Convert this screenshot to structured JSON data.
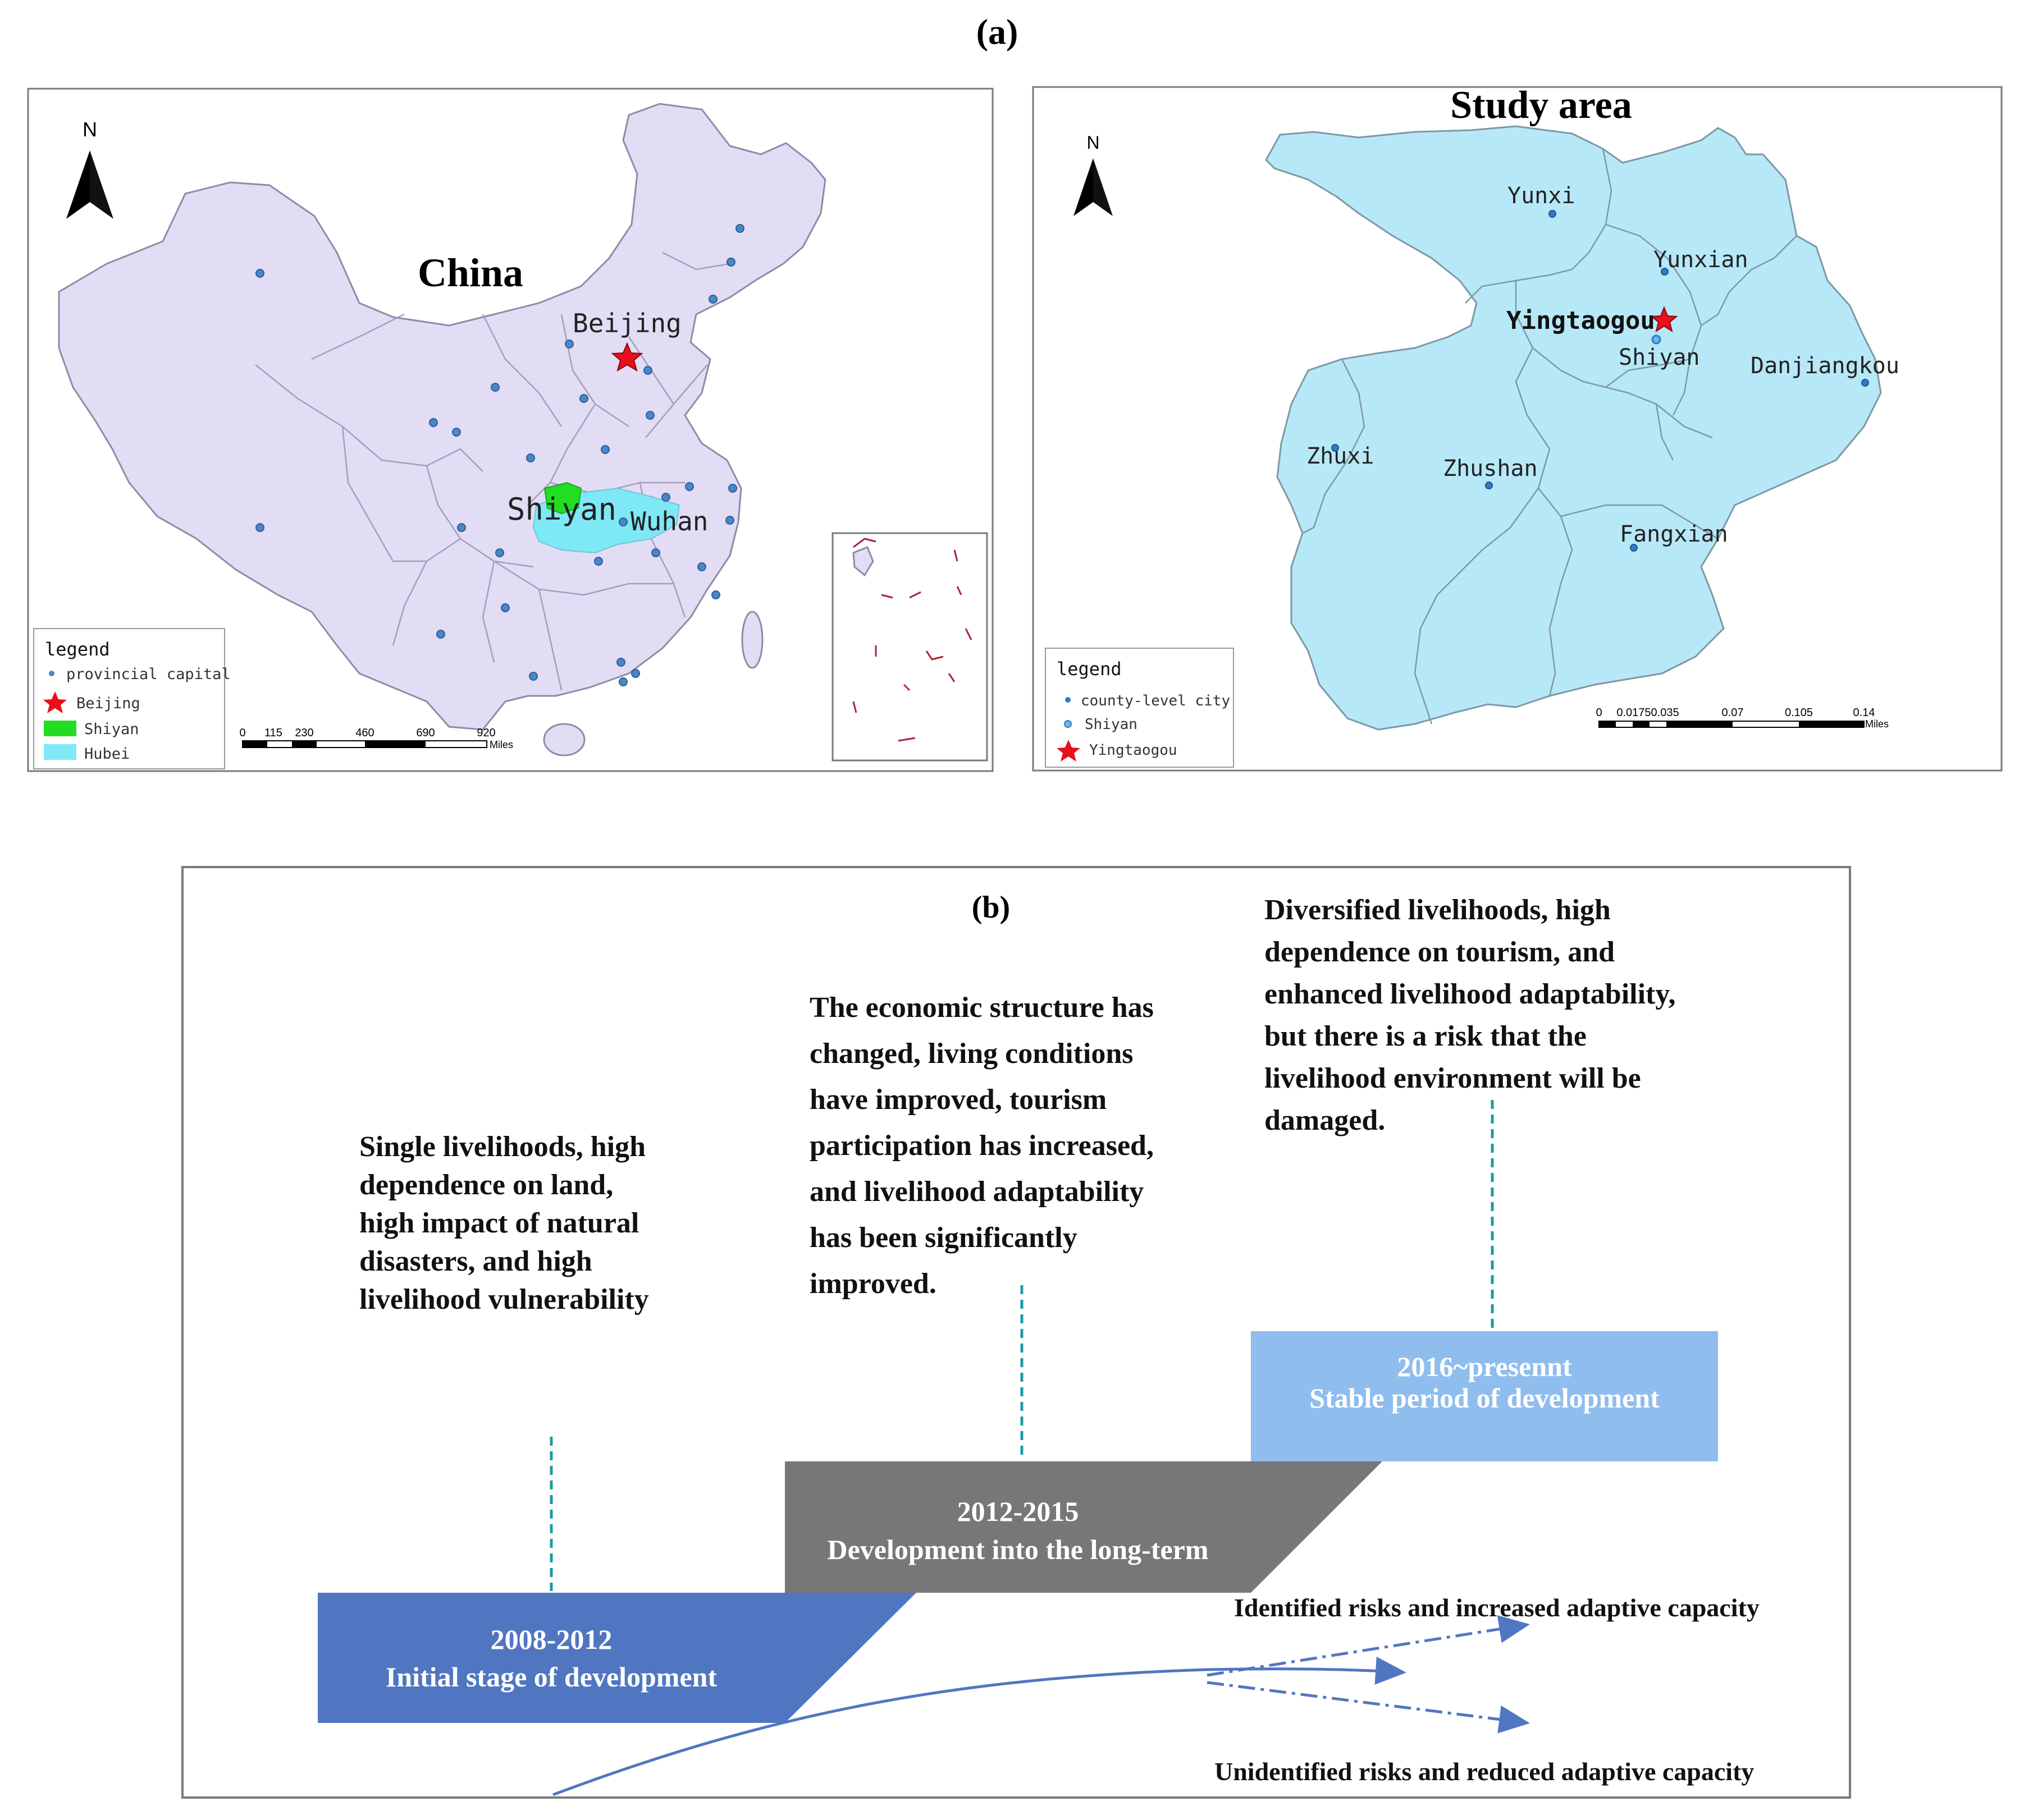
{
  "panel_a_label": "(a)",
  "panel_b_label": "(b)",
  "china_map": {
    "title": "China",
    "north_label": "N",
    "places": {
      "beijing": "Beijing",
      "shiyan": "Shiyan",
      "wuhan": "Wuhan"
    },
    "legend": {
      "title": "legend",
      "items": [
        "provincial capital",
        "Beijing",
        "Shiyan",
        "Hubei"
      ]
    },
    "scale_bar": {
      "ticks": [
        "0",
        "115",
        "230",
        "460",
        "690",
        "920"
      ],
      "unit": "Miles"
    },
    "colors": {
      "land": "#e3dcf5",
      "hubei": "#7fe8f6",
      "shiyan": "#22dd22",
      "star": "#e8101a",
      "dot": "#4a86c8"
    }
  },
  "study_map": {
    "title": "Study area",
    "north_label": "N",
    "places": {
      "yunxi": "Yunxi",
      "yunxian": "Yunxian",
      "yingtaogou": "Yingtaogou",
      "shiyan": "Shiyan",
      "danjiangkou": "Danjiangkou",
      "zhuxi": "Zhuxi",
      "zhushan": "Zhushan",
      "fangxian": "Fangxian"
    },
    "legend": {
      "title": "legend",
      "items": [
        "county-level city",
        "Shiyan",
        "Yingtaogou"
      ]
    },
    "scale_bar": {
      "ticks": [
        "0",
        "0.01750.035",
        "0.07",
        "0.105",
        "0.14"
      ],
      "unit": "Miles"
    },
    "colors": {
      "land": "#b7e8f7"
    }
  },
  "timeline": {
    "stages": [
      {
        "years": "2008-2012",
        "name": "Initial stage of development",
        "color": "#5176c1"
      },
      {
        "years": "2012-2015",
        "name": "Development into the long-term",
        "color": "#777777"
      },
      {
        "years": "2016~presennt",
        "name": "Stable period of development",
        "color": "#8fbdee"
      }
    ],
    "descriptions": [
      [
        "Single livelihoods, high",
        "dependence on land,",
        "high impact of natural",
        "disasters, and high",
        "livelihood vulnerability"
      ],
      [
        "The economic structure has",
        "changed, living conditions",
        "have improved, tourism",
        "participation has increased,",
        "and livelihood adaptability",
        "has been significantly",
        "improved."
      ],
      [
        "Diversified livelihoods, high",
        "dependence on tourism, and",
        "enhanced livelihood adaptability,",
        "but there is a risk that the",
        "livelihood environment will be",
        "damaged."
      ]
    ],
    "outcomes": {
      "upper": "Identified risks and increased adaptive capacity",
      "lower": "Unidentified risks and reduced adaptive capacity"
    }
  }
}
